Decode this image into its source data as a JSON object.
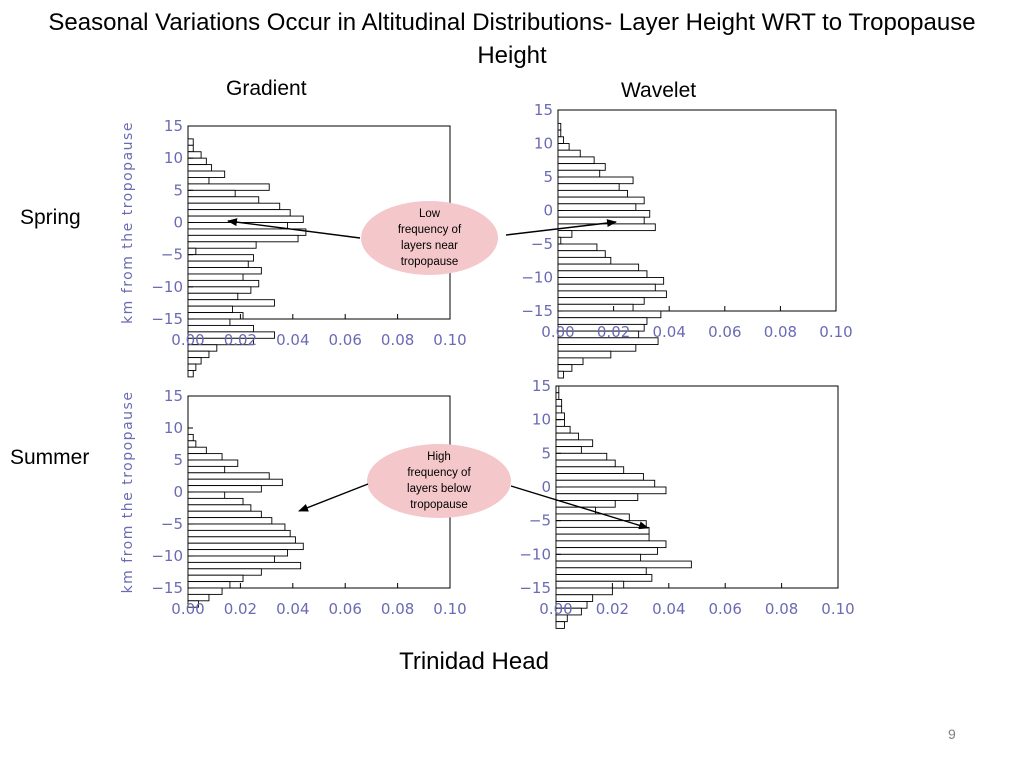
{
  "slide": {
    "title": "Seasonal Variations Occur in Altitudinal Distributions- Layer Height WRT to Tropopause Height",
    "col_headers": [
      "Gradient",
      "Wavelet"
    ],
    "row_headers": [
      "Spring",
      "Summer"
    ],
    "footer": "Trinidad Head",
    "page_number": "9",
    "annotations": {
      "spring": [
        "Low",
        "frequency of",
        "layers near",
        "tropopause"
      ],
      "summer": [
        "High",
        "frequency of",
        "layers below",
        "tropopause"
      ]
    },
    "colors": {
      "axis_text": "#6a6ab5",
      "bubble_fill": "#f4c7ca",
      "bar_stroke": "#000000"
    }
  },
  "chart_data": [
    {
      "type": "bar",
      "orientation": "horizontal",
      "method": "Gradient",
      "season": "Spring",
      "ylabel": "km from the tropopause",
      "xlim": [
        0,
        0.1
      ],
      "ylim": [
        -15,
        15
      ],
      "xticks": [
        "0.00",
        "0.02",
        "0.04",
        "0.06",
        "0.08",
        "0.10"
      ],
      "yticks": [
        "15",
        "10",
        "5",
        "0",
        "−5",
        "−10",
        "−15"
      ],
      "bins_top_km": 12.5,
      "bin_width_km": 1,
      "values": [
        0.002,
        0.002,
        0.005,
        0.007,
        0.009,
        0.014,
        0.008,
        0.031,
        0.018,
        0.027,
        0.035,
        0.039,
        0.044,
        0.038,
        0.045,
        0.042,
        0.026,
        0.003,
        0.025,
        0.023,
        0.028,
        0.021,
        0.027,
        0.024,
        0.019,
        0.033,
        0.017,
        0.021,
        0.016,
        0.025,
        0.033,
        0.025,
        0.011,
        0.008,
        0.005,
        0.003,
        0.002
      ]
    },
    {
      "type": "bar",
      "orientation": "horizontal",
      "method": "Wavelet",
      "season": "Spring",
      "ylabel": "",
      "xlim": [
        0,
        0.1
      ],
      "ylim": [
        -15,
        15
      ],
      "xticks": [
        "0.00",
        "0.02",
        "0.04",
        "0.06",
        "0.08",
        "0.10"
      ],
      "yticks": [
        "15",
        "10",
        "5",
        "0",
        "−5",
        "−10",
        "−15"
      ],
      "bins_top_km": 12.5,
      "bin_width_km": 1,
      "values": [
        0.001,
        0.001,
        0.002,
        0.004,
        0.008,
        0.013,
        0.017,
        0.015,
        0.027,
        0.022,
        0.025,
        0.031,
        0.028,
        0.033,
        0.031,
        0.035,
        0.005,
        0.001,
        0.014,
        0.017,
        0.019,
        0.029,
        0.032,
        0.038,
        0.035,
        0.039,
        0.031,
        0.027,
        0.037,
        0.032,
        0.031,
        0.029,
        0.036,
        0.028,
        0.019,
        0.009,
        0.005,
        0.002
      ]
    },
    {
      "type": "bar",
      "orientation": "horizontal",
      "method": "Gradient",
      "season": "Summer",
      "ylabel": "km from the tropopause",
      "xlim": [
        0,
        0.1
      ],
      "ylim": [
        -15,
        15
      ],
      "xticks": [
        "0.00",
        "0.02",
        "0.04",
        "0.06",
        "0.08",
        "0.10"
      ],
      "yticks": [
        "15",
        "10",
        "5",
        "0",
        "−5",
        "−10",
        "−15"
      ],
      "bins_top_km": 8.5,
      "bin_width_km": 1,
      "values": [
        0.002,
        0.003,
        0.007,
        0.013,
        0.019,
        0.014,
        0.031,
        0.036,
        0.028,
        0.014,
        0.021,
        0.024,
        0.028,
        0.032,
        0.037,
        0.039,
        0.041,
        0.044,
        0.038,
        0.033,
        0.043,
        0.028,
        0.021,
        0.016,
        0.013,
        0.008,
        0.004
      ]
    },
    {
      "type": "bar",
      "orientation": "horizontal",
      "method": "Wavelet",
      "season": "Summer",
      "ylabel": "",
      "xlim": [
        0,
        0.1
      ],
      "ylim": [
        -15,
        15
      ],
      "xticks": [
        "0.00",
        "0.02",
        "0.04",
        "0.06",
        "0.08",
        "0.10"
      ],
      "yticks": [
        "15",
        "10",
        "5",
        "0",
        "−5",
        "−10",
        "−15"
      ],
      "bins_top_km": 14.5,
      "bin_width_km": 1,
      "values": [
        0.001,
        0.001,
        0.002,
        0.002,
        0.003,
        0.003,
        0.005,
        0.008,
        0.013,
        0.009,
        0.018,
        0.021,
        0.024,
        0.031,
        0.035,
        0.039,
        0.029,
        0.021,
        0.014,
        0.026,
        0.032,
        0.033,
        0.033,
        0.039,
        0.036,
        0.03,
        0.048,
        0.032,
        0.034,
        0.024,
        0.02,
        0.013,
        0.011,
        0.009,
        0.004,
        0.003
      ]
    }
  ]
}
